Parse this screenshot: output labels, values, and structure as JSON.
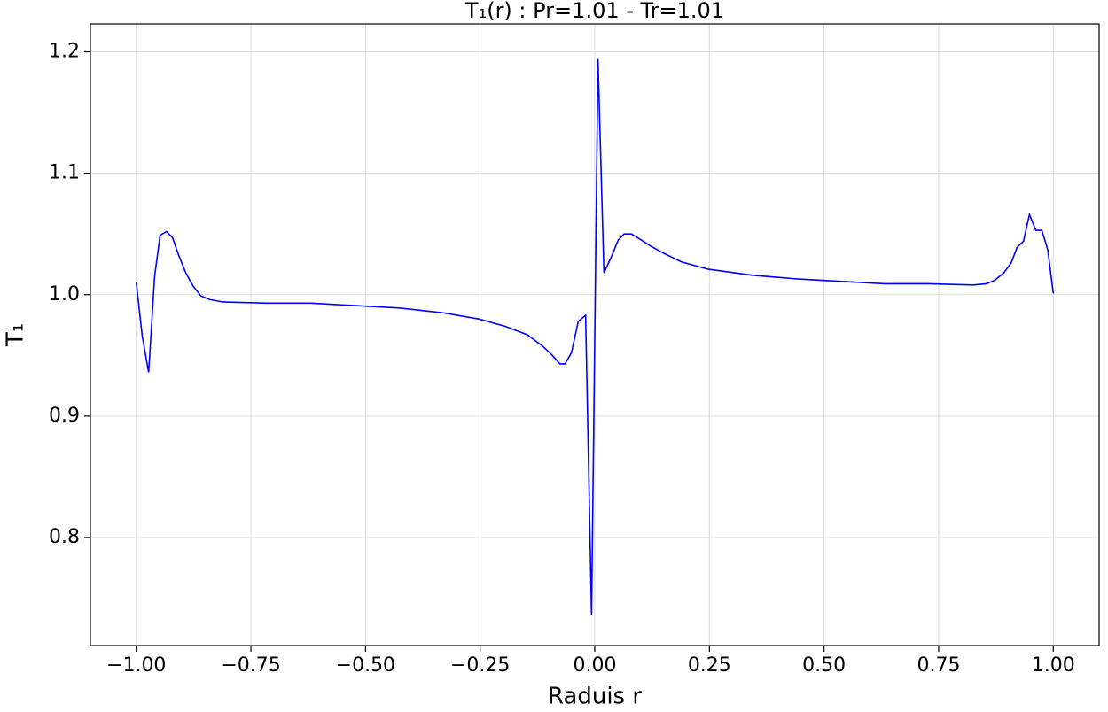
{
  "chart_data": {
    "type": "line",
    "title": "T₁(r) : Pr=1.01 - Tr=1.01",
    "x_label": "Raduis r",
    "y_label": "T₁",
    "xlim": [
      -1.1,
      1.1
    ],
    "ylim": [
      0.711,
      1.223
    ],
    "xticks": [
      {
        "value": -1,
        "label": "−1.00"
      },
      {
        "value": -0.75,
        "label": "−0.75"
      },
      {
        "value": -0.5,
        "label": "−0.50"
      },
      {
        "value": -0.25,
        "label": "−0.25"
      },
      {
        "value": 0,
        "label": "0.00"
      },
      {
        "value": 0.25,
        "label": "0.25"
      },
      {
        "value": 0.5,
        "label": "0.50"
      },
      {
        "value": 0.75,
        "label": "0.75"
      },
      {
        "value": 1,
        "label": "1.00"
      }
    ],
    "yticks": [
      0.8,
      0.9,
      {
        "value": 1,
        "label": "1.0"
      },
      1.1,
      1.2
    ],
    "grid": true,
    "series": [
      {
        "color": "#0000ff",
        "x": [
          -1.0,
          -0.987,
          -0.973,
          -0.96,
          -0.948,
          -0.934,
          -0.921,
          -0.907,
          -0.892,
          -0.876,
          -0.859,
          -0.84,
          -0.811,
          -0.715,
          -0.619,
          -0.522,
          -0.426,
          -0.33,
          -0.253,
          -0.196,
          -0.147,
          -0.115,
          -0.095,
          -0.076,
          -0.065,
          -0.051,
          -0.036,
          -0.02,
          -0.007,
          0.007,
          0.02,
          0.036,
          0.051,
          0.064,
          0.08,
          0.093,
          0.122,
          0.151,
          0.189,
          0.247,
          0.344,
          0.44,
          0.536,
          0.632,
          0.729,
          0.825,
          0.854,
          0.873,
          0.892,
          0.908,
          0.921,
          0.935,
          0.948,
          0.962,
          0.975,
          0.988,
          1.0
        ],
        "values": [
          1.01,
          0.966,
          0.936,
          1.015,
          1.049,
          1.052,
          1.047,
          1.032,
          1.018,
          1.007,
          0.999,
          0.996,
          0.994,
          0.993,
          0.993,
          0.991,
          0.989,
          0.985,
          0.98,
          0.974,
          0.967,
          0.958,
          0.951,
          0.943,
          0.943,
          0.952,
          0.978,
          0.983,
          0.736,
          1.194,
          1.018,
          1.031,
          1.045,
          1.05,
          1.05,
          1.047,
          1.04,
          1.034,
          1.027,
          1.021,
          1.016,
          1.013,
          1.011,
          1.009,
          1.009,
          1.008,
          1.009,
          1.012,
          1.018,
          1.026,
          1.039,
          1.044,
          1.066,
          1.053,
          1.053,
          1.037,
          1.001
        ]
      }
    ]
  }
}
